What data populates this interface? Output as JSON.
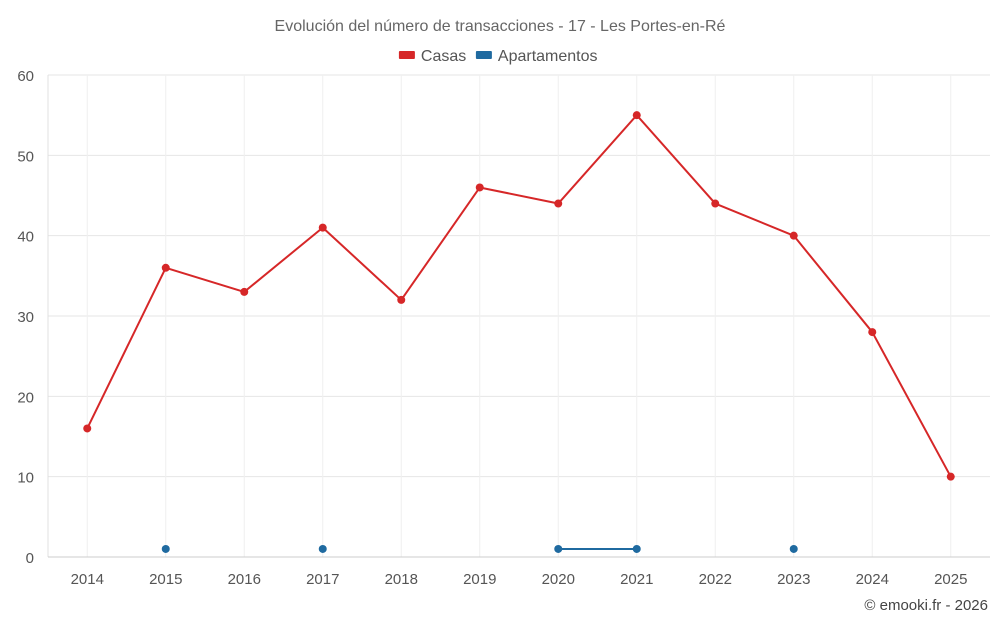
{
  "chart_data": {
    "type": "line",
    "title": "Evolución del número de transacciones - 17 - Les Portes-en-Ré",
    "xlabel": "",
    "ylabel": "",
    "categories": [
      "2014",
      "2015",
      "2016",
      "2017",
      "2018",
      "2019",
      "2020",
      "2021",
      "2022",
      "2023",
      "2024",
      "2025"
    ],
    "ylim": [
      0,
      60
    ],
    "yticks": [
      0,
      10,
      20,
      30,
      40,
      50,
      60
    ],
    "grid": true,
    "legend_position": "top-center",
    "series": [
      {
        "name": "Casas",
        "color": "#d62728",
        "values": [
          16,
          36,
          33,
          41,
          32,
          46,
          44,
          55,
          44,
          40,
          28,
          10
        ]
      },
      {
        "name": "Apartamentos",
        "color": "#1f6aa0",
        "values": [
          null,
          1,
          null,
          1,
          null,
          null,
          1,
          1,
          null,
          1,
          null,
          null
        ]
      }
    ]
  },
  "credit": "© emooki.fr - 2026"
}
